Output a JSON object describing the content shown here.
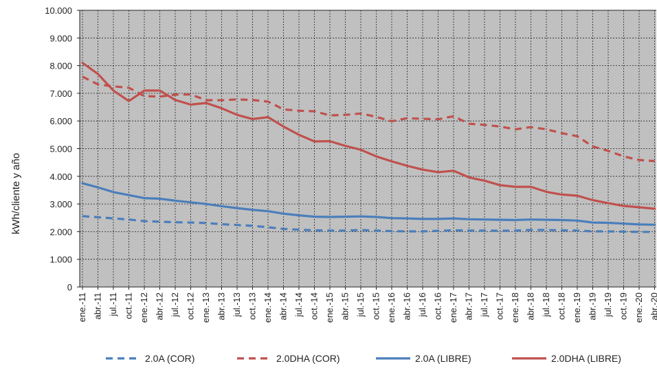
{
  "chart_data": {
    "type": "line",
    "title": "",
    "ylabel": "kWh/cliente y año",
    "xlabel": "",
    "ylim": [
      0,
      10000
    ],
    "yticks": [
      "0",
      "1.000",
      "2.000",
      "3.000",
      "4.000",
      "5.000",
      "6.000",
      "7.000",
      "8.000",
      "9.000",
      "10.000"
    ],
    "grid": true,
    "legend_position": "bottom",
    "x_labels": [
      "ene.-11",
      "abr.-11",
      "jul.-11",
      "oct.-11",
      "ene.-12",
      "abr.-12",
      "jul.-12",
      "oct.-12",
      "ene.-13",
      "abr.-13",
      "jul.-13",
      "oct.-13",
      "ene.-14",
      "abr.-14",
      "jul.-14",
      "oct.-14",
      "ene.-15",
      "abr.-15",
      "jul.-15",
      "oct.-15",
      "ene.-16",
      "abr.-16",
      "jul.-16",
      "oct.-16",
      "ene.-17",
      "abr.-17",
      "jul.-17",
      "oct.-17",
      "ene.-18",
      "abr.-18",
      "jul.-18",
      "oct.-18",
      "ene.-19",
      "abr.-19",
      "jul.-19",
      "oct.-19",
      "ene.-20",
      "abr.-20"
    ],
    "series": [
      {
        "name": "2.0A (COR)",
        "color": "#4a7ebb",
        "dash": true,
        "values": [
          2560,
          2520,
          2480,
          2440,
          2380,
          2360,
          2340,
          2330,
          2310,
          2270,
          2240,
          2210,
          2160,
          2100,
          2070,
          2050,
          2040,
          2040,
          2060,
          2040,
          2020,
          2010,
          2010,
          2030,
          2050,
          2040,
          2040,
          2030,
          2040,
          2060,
          2060,
          2050,
          2040,
          2010,
          2010,
          2000,
          1990,
          1990
        ]
      },
      {
        "name": "2.0DHA (COR)",
        "color": "#c0504d",
        "dash": true,
        "values": [
          7600,
          7320,
          7250,
          7200,
          6900,
          6880,
          6950,
          6960,
          6750,
          6750,
          6780,
          6760,
          6700,
          6420,
          6370,
          6350,
          6200,
          6220,
          6270,
          6150,
          5990,
          6100,
          6080,
          6060,
          6170,
          5900,
          5860,
          5800,
          5700,
          5780,
          5700,
          5560,
          5450,
          5080,
          4920,
          4720,
          4590,
          4550
        ]
      },
      {
        "name": "2.0A (LIBRE)",
        "color": "#4a7ebb",
        "dash": false,
        "values": [
          3750,
          3600,
          3430,
          3320,
          3210,
          3190,
          3120,
          3060,
          3000,
          2920,
          2850,
          2790,
          2740,
          2650,
          2590,
          2540,
          2530,
          2540,
          2550,
          2530,
          2490,
          2480,
          2460,
          2460,
          2480,
          2450,
          2440,
          2430,
          2420,
          2440,
          2430,
          2420,
          2400,
          2330,
          2320,
          2290,
          2260,
          2250
        ]
      },
      {
        "name": "2.0DHA (LIBRE)",
        "color": "#c0504d",
        "dash": false,
        "values": [
          8100,
          7700,
          7100,
          6720,
          7100,
          7100,
          6760,
          6590,
          6650,
          6460,
          6220,
          6070,
          6140,
          5800,
          5500,
          5260,
          5270,
          5100,
          4960,
          4720,
          4540,
          4380,
          4240,
          4150,
          4200,
          3960,
          3840,
          3680,
          3620,
          3620,
          3440,
          3340,
          3300,
          3140,
          3030,
          2930,
          2880,
          2830
        ]
      }
    ]
  }
}
